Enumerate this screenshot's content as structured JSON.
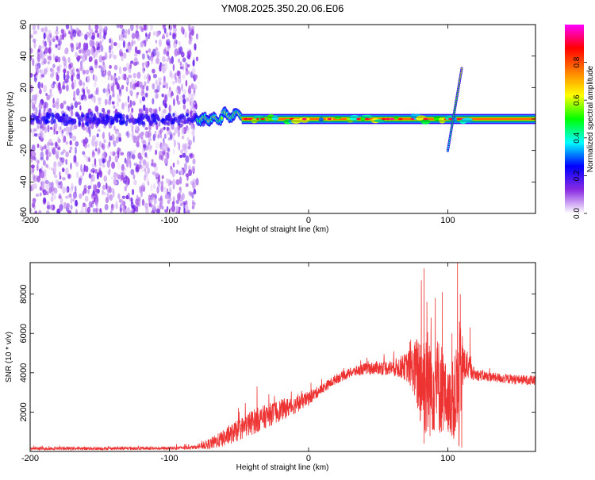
{
  "title": "YM08.2025.350.20.06.E06",
  "chart_data": [
    {
      "type": "heatmap",
      "title": "YM08.2025.350.20.06.E06",
      "xlabel": "Height of straight line (km)",
      "ylabel": "Frequency (Hz)",
      "xlim": [
        -200,
        163
      ],
      "ylim": [
        -60,
        60
      ],
      "xticks": [
        -200,
        -100,
        0,
        100
      ],
      "yticks": [
        -60,
        -40,
        -20,
        0,
        20,
        40,
        60
      ],
      "xtick_labels": [
        "-200",
        "-100",
        "0",
        "100"
      ],
      "ytick_labels": [
        "-60",
        "-40",
        "-20",
        "0",
        "20",
        "40",
        "60"
      ],
      "features": [
        {
          "name": "noise",
          "x_range": [
            -200,
            -80
          ],
          "freq_range": [
            -60,
            60
          ],
          "amplitude": 0.1
        },
        {
          "name": "carrier",
          "x_range": [
            -78,
            163
          ],
          "freq": 0,
          "amplitude": 0.8
        },
        {
          "name": "chirp",
          "x_range": [
            100,
            110
          ],
          "freq_range": [
            -20,
            32
          ],
          "amplitude": 0.4
        }
      ],
      "colorbar": {
        "label": "Normalized spectral amplitude",
        "range": [
          0,
          1
        ],
        "ticks": [
          0,
          0.2,
          0.4,
          0.6,
          0.8
        ],
        "tick_labels": [
          "0.0",
          "0.2",
          "0.4",
          "0.6",
          "0.8"
        ],
        "colors": [
          "#ffffff",
          "#8a2be2",
          "#0000ff",
          "#00ffff",
          "#00ff00",
          "#ffff00",
          "#ff8000",
          "#ff0000",
          "#ff00ff"
        ]
      }
    },
    {
      "type": "line",
      "xlabel": "Height of straight line (km)",
      "ylabel": "SNR (10 * v/v)",
      "xlim": [
        -200,
        163
      ],
      "ylim": [
        0,
        9600
      ],
      "xticks": [
        -200,
        -100,
        0,
        100
      ],
      "yticks": [
        2000,
        4000,
        6000,
        8000
      ],
      "xtick_labels": [
        "-200",
        "-100",
        "0",
        "100"
      ],
      "ytick_labels": [
        "2000",
        "4000",
        "6000",
        "8000"
      ],
      "series": [
        {
          "name": "SNR",
          "color": "#ee3333",
          "x": [
            -200,
            -150,
            -100,
            -80,
            -70,
            -60,
            -50,
            -40,
            -30,
            -20,
            -10,
            0,
            10,
            20,
            30,
            40,
            50,
            60,
            70,
            75,
            80,
            85,
            90,
            95,
            100,
            105,
            108,
            110,
            112,
            115,
            120,
            130,
            140,
            150,
            163
          ],
          "base": [
            150,
            150,
            160,
            220,
            400,
            700,
            1100,
            1500,
            1800,
            2100,
            2350,
            2700,
            3200,
            3700,
            4000,
            4200,
            4250,
            4250,
            4300,
            4200,
            3800,
            3500,
            3400,
            3300,
            2500,
            2700,
            3200,
            4200,
            4400,
            4200,
            3900,
            3800,
            3700,
            3650,
            3600
          ],
          "noise": [
            80,
            80,
            80,
            100,
            300,
            450,
            550,
            650,
            600,
            550,
            450,
            350,
            250,
            250,
            250,
            300,
            350,
            400,
            700,
            1200,
            2500,
            3000,
            2500,
            2500,
            1500,
            2200,
            3500,
            2000,
            1000,
            500,
            300,
            250,
            250,
            250,
            250
          ]
        }
      ],
      "peaks": [
        {
          "x": 81,
          "y": 8700
        },
        {
          "x": 83,
          "y": 9300
        },
        {
          "x": 85,
          "y": 7600
        },
        {
          "x": 88,
          "y": 6800
        },
        {
          "x": 91,
          "y": 7800
        },
        {
          "x": 96,
          "y": 8100
        },
        {
          "x": 103,
          "y": 6000
        },
        {
          "x": 107,
          "y": 9600
        },
        {
          "x": 109,
          "y": 8000
        },
        {
          "x": 116,
          "y": 6300
        },
        {
          "x": -37,
          "y": 3300
        },
        {
          "x": 83,
          "y": 400
        },
        {
          "x": 110,
          "y": 200
        }
      ]
    }
  ]
}
